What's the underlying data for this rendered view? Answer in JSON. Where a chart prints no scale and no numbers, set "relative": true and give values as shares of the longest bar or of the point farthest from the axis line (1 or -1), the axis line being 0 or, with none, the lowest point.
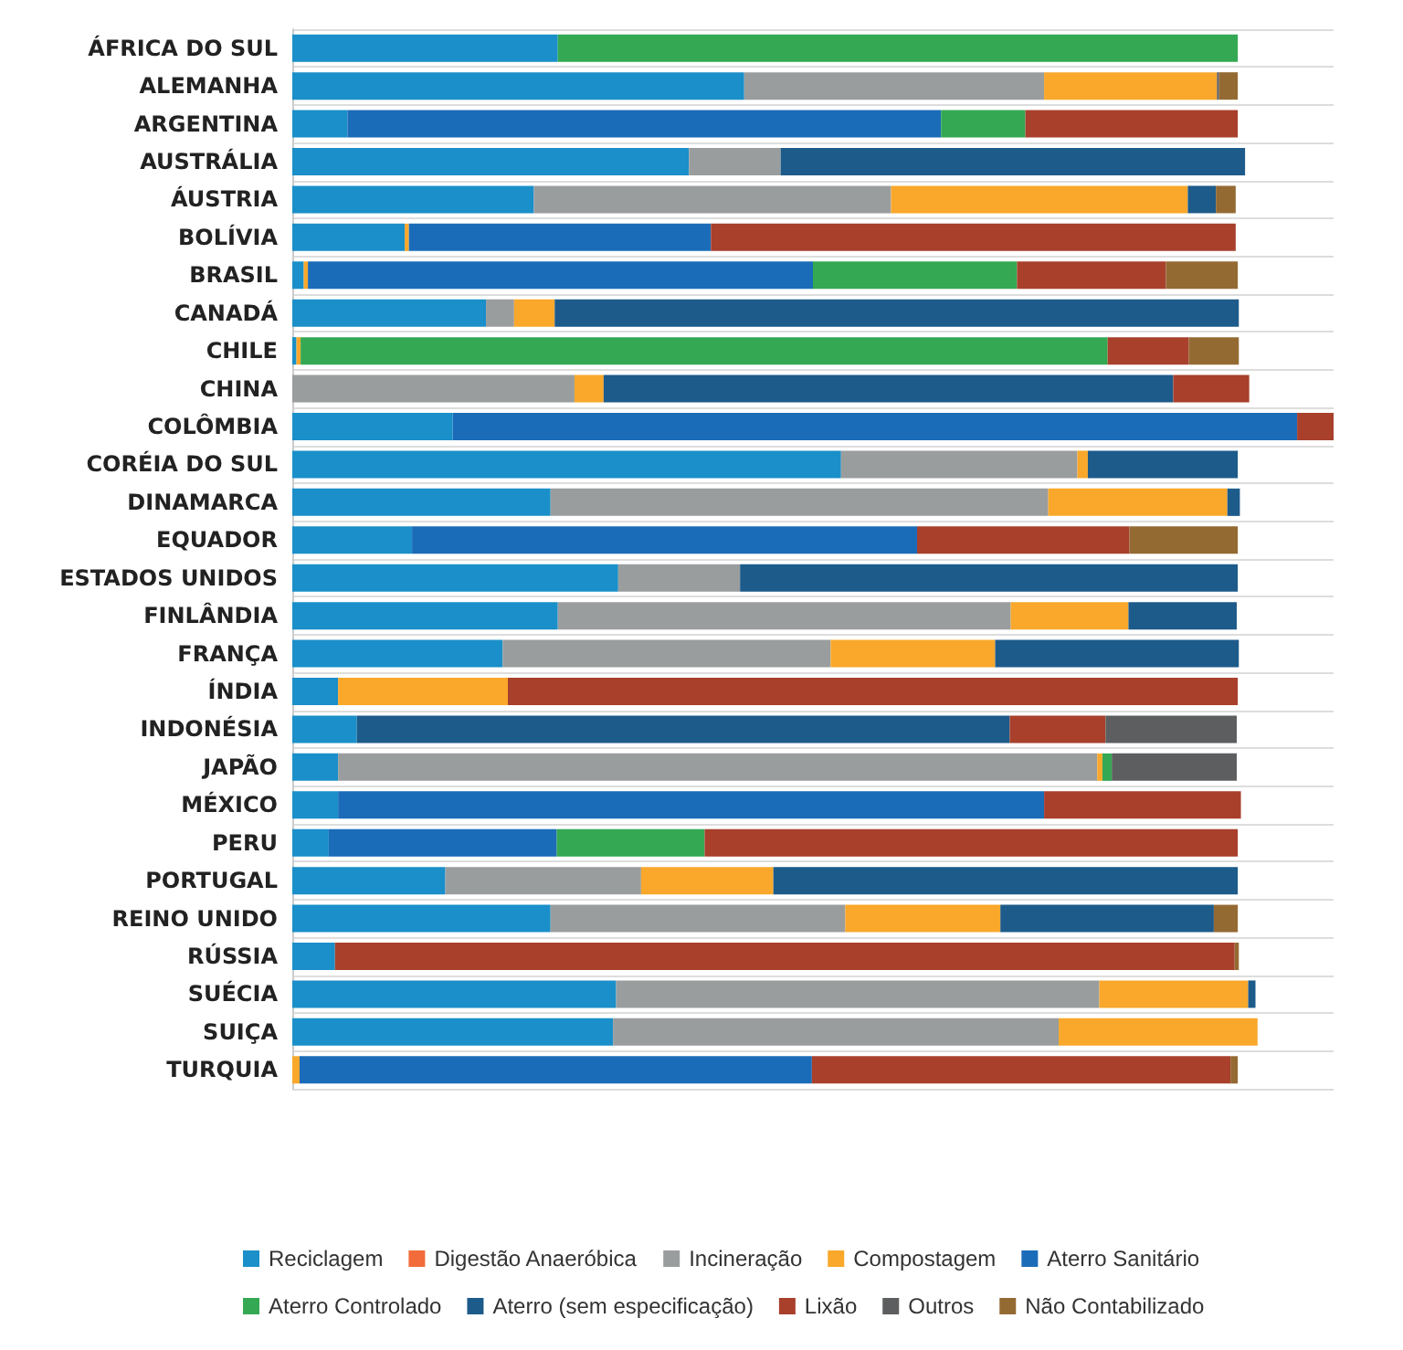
{
  "chart_data": {
    "type": "bar",
    "orientation": "horizontal",
    "stacked": true,
    "relative": true,
    "grid": "y",
    "legend": "bottom",
    "categories": [
      "ÁFRICA DO SUL",
      "ALEMANHA",
      "ARGENTINA",
      "AUSTRÁLIA",
      "ÁUSTRIA",
      "BOLÍVIA",
      "BRASIL",
      "CANADÁ",
      "CHILE",
      "CHINA",
      "COLÔMBIA",
      "CORÉIA DO SUL",
      "DINAMARCA",
      "EQUADOR",
      "ESTADOS UNIDOS",
      "FINLÂNDIA",
      "FRANÇA",
      "ÍNDIA",
      "INDONÉSIA",
      "JAPÃO",
      "MÉXICO",
      "PERU",
      "PORTUGAL",
      "REINO UNIDO",
      "RÚSSIA",
      "SUÉCIA",
      "SUIÇA",
      "TURQUIA"
    ],
    "series": [
      {
        "name": "Reciclagem",
        "color": "#1a8fc9",
        "values": [
          0.255,
          0.434,
          0.053,
          0.381,
          0.232,
          0.108,
          0.011,
          0.186,
          0.004,
          null,
          0.154,
          0.527,
          0.248,
          0.115,
          0.313,
          0.255,
          0.202,
          0.044,
          0.062,
          0.044,
          0.044,
          0.035,
          0.147,
          0.248,
          0.041,
          0.311,
          0.308,
          null
        ]
      },
      {
        "name": "Digestão Anaeróbica",
        "color": "#f26b3a",
        "values": [
          null,
          null,
          null,
          null,
          null,
          null,
          null,
          null,
          null,
          null,
          null,
          null,
          null,
          null,
          null,
          null,
          null,
          null,
          null,
          null,
          null,
          null,
          null,
          null,
          null,
          null,
          null,
          null
        ]
      },
      {
        "name": "Incineração",
        "color": "#9a9d9e",
        "values": [
          null,
          0.288,
          null,
          0.088,
          0.343,
          null,
          null,
          0.027,
          null,
          0.271,
          null,
          0.227,
          0.478,
          null,
          0.117,
          0.435,
          0.315,
          null,
          null,
          0.729,
          null,
          null,
          0.188,
          0.283,
          null,
          0.464,
          0.428,
          null
        ]
      },
      {
        "name": "Compostagem",
        "color": "#f9a82b",
        "values": [
          null,
          0.166,
          null,
          null,
          0.285,
          0.004,
          0.004,
          0.039,
          0.004,
          0.028,
          null,
          0.01,
          0.172,
          null,
          null,
          0.113,
          0.158,
          0.163,
          null,
          0.005,
          null,
          null,
          0.127,
          0.149,
          null,
          0.143,
          0.191,
          0.007
        ]
      },
      {
        "name": "Aterro Sanitário",
        "color": "#1b6cb8",
        "values": [
          null,
          null,
          0.57,
          null,
          null,
          0.29,
          0.485,
          null,
          null,
          null,
          0.811,
          null,
          null,
          0.485,
          null,
          null,
          null,
          null,
          null,
          null,
          0.678,
          0.219,
          null,
          null,
          null,
          null,
          null,
          0.492
        ]
      },
      {
        "name": "Aterro Controlado",
        "color": "#34a853",
        "values": [
          0.653,
          null,
          0.081,
          null,
          null,
          null,
          0.196,
          null,
          0.775,
          null,
          null,
          null,
          null,
          null,
          null,
          null,
          null,
          null,
          null,
          0.009,
          null,
          0.142,
          null,
          null,
          null,
          null,
          null,
          null
        ]
      },
      {
        "name": "Aterro (sem especificação)",
        "color": "#1d5b8a",
        "values": [
          null,
          null,
          null,
          0.446,
          0.027,
          null,
          null,
          0.657,
          null,
          0.547,
          null,
          0.144,
          0.012,
          null,
          0.478,
          0.104,
          0.234,
          null,
          0.627,
          null,
          null,
          null,
          0.446,
          0.205,
          null,
          0.007,
          null,
          null
        ]
      },
      {
        "name": "Lixão",
        "color": "#a8402c",
        "values": [
          null,
          null,
          0.204,
          null,
          null,
          0.504,
          0.143,
          null,
          0.078,
          0.073,
          0.035,
          null,
          null,
          0.204,
          null,
          null,
          null,
          0.701,
          0.092,
          null,
          0.189,
          0.512,
          null,
          null,
          0.864,
          null,
          null,
          0.402
        ]
      },
      {
        "name": "Outros",
        "color": "#5d5e60",
        "values": [
          null,
          0.002,
          null,
          null,
          null,
          null,
          null,
          null,
          null,
          null,
          null,
          null,
          null,
          null,
          null,
          null,
          null,
          null,
          0.126,
          0.12,
          null,
          null,
          null,
          null,
          null,
          null,
          null,
          null
        ]
      },
      {
        "name": "Não Contabilizado",
        "color": "#946a33",
        "values": [
          null,
          0.018,
          null,
          null,
          0.019,
          null,
          0.069,
          null,
          0.048,
          null,
          null,
          null,
          null,
          0.104,
          null,
          null,
          null,
          null,
          null,
          null,
          null,
          null,
          null,
          0.023,
          0.004,
          null,
          null,
          0.007
        ]
      }
    ]
  }
}
